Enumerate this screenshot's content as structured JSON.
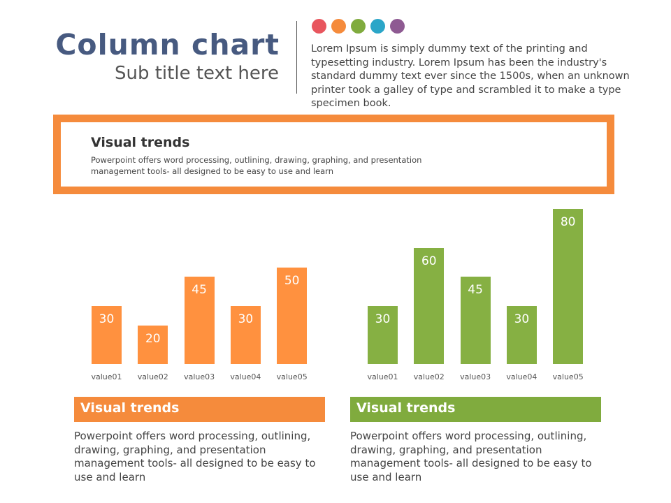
{
  "header": {
    "title": "Column chart",
    "subtitle": "Sub title text here",
    "intro": "Lorem Ipsum is simply dummy text of the printing and typesetting industry. Lorem Ipsum has been the industry's standard dummy text ever since the 1500s, when an unknown printer took a galley of type and scrambled it to make a type specimen book."
  },
  "palette": [
    "#e8565e",
    "#f58b3c",
    "#80ab3e",
    "#2ba6c8",
    "#8e5a92"
  ],
  "callout": {
    "title": "Visual trends",
    "text": "Powerpoint offers word processing, outlining, drawing, graphing, and presentation management tools- all designed to be easy to use and learn"
  },
  "chart_data": [
    {
      "type": "bar",
      "categories": [
        "value01",
        "value02",
        "value03",
        "value04",
        "value05"
      ],
      "values": [
        30,
        20,
        45,
        30,
        50
      ],
      "color": "#ff913f",
      "ylim": [
        0,
        80
      ]
    },
    {
      "type": "bar",
      "categories": [
        "value01",
        "value02",
        "value03",
        "value04",
        "value05"
      ],
      "values": [
        30,
        60,
        45,
        30,
        80
      ],
      "color": "#86b043",
      "ylim": [
        0,
        80
      ]
    }
  ],
  "panels": [
    {
      "title": "Visual trends",
      "text": "Powerpoint offers word processing, outlining, drawing, graphing, and presentation management tools- all designed to be easy to use and learn",
      "color": "#f58b3c"
    },
    {
      "title": "Visual trends",
      "text": "Powerpoint offers word processing, outlining, drawing, graphing, and presentation management tools- all designed to be easy to use and learn",
      "color": "#80ab3e"
    }
  ]
}
